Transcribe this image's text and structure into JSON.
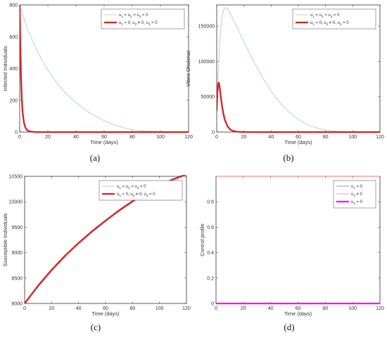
{
  "colors": {
    "uncontrolled": "#b9d3d2",
    "controlled": "#d62020",
    "u1": "#9e9e9e",
    "u2": "#b7b7b7",
    "u3": "#ff00ff",
    "pink_line": "#ff7070"
  },
  "chart_data": [
    {
      "id": "a",
      "caption": "(a)",
      "type": "line",
      "xlabel": "Time (days)",
      "ylabel": "Infected Individuals",
      "xlim": [
        0,
        120
      ],
      "ylim": [
        0,
        800
      ],
      "xticks": [
        0,
        20,
        40,
        60,
        80,
        100,
        120
      ],
      "yticks": [
        0,
        200,
        400,
        600,
        800
      ],
      "ytick_labels": [
        "0",
        "200",
        "400",
        "600",
        "800"
      ],
      "legend_position": "top-right",
      "legend": [
        {
          "base": "u",
          "subs": [
            "1",
            "2",
            "3"
          ],
          "mid": [
            " = ",
            " = ",
            " = "
          ],
          "tail": "0"
        },
        {
          "base": "u",
          "subs": [
            "1",
            "2",
            "3"
          ],
          "mid": [
            " = 0, ",
            " ≠ 0, ",
            " = "
          ],
          "tail": "0"
        }
      ],
      "series": [
        {
          "x": [
            0,
            2,
            5,
            10,
            15,
            20,
            25,
            30,
            35,
            40,
            45,
            50,
            55,
            60,
            65,
            70,
            75,
            80,
            85,
            90,
            100,
            110,
            120
          ],
          "y": [
            800,
            740,
            660,
            555,
            465,
            390,
            325,
            270,
            225,
            186,
            150,
            120,
            95,
            72,
            52,
            36,
            24,
            16,
            10,
            6,
            3,
            1,
            0
          ]
        },
        {
          "x": [
            0,
            0.5,
            1,
            1.5,
            2,
            3,
            4,
            5,
            6,
            8,
            10,
            15,
            20,
            30,
            60,
            90,
            120
          ],
          "y": [
            800,
            520,
            330,
            210,
            130,
            60,
            30,
            15,
            8,
            3,
            1,
            0,
            0,
            0,
            0,
            0,
            0
          ]
        }
      ]
    },
    {
      "id": "b",
      "caption": "(b)",
      "type": "line",
      "xlabel": "Time (days)",
      "ylabel": "Vibrio Cholerae",
      "xlim": [
        0,
        120
      ],
      "ylim": [
        0,
        180000
      ],
      "xticks": [
        0,
        20,
        40,
        60,
        80,
        100,
        120
      ],
      "yticks": [
        0,
        50000,
        100000,
        150000
      ],
      "ytick_labels": [
        "0",
        "50000",
        "100000",
        "150000"
      ],
      "legend_position": "top-right",
      "legend": [
        {
          "base": "u",
          "subs": [
            "1",
            "2",
            "3"
          ],
          "mid": [
            " = ",
            " = ",
            " = "
          ],
          "tail": "0"
        },
        {
          "base": "u",
          "subs": [
            "1",
            "2",
            "3"
          ],
          "mid": [
            " = 0, ",
            " ≠ 0, ",
            " = "
          ],
          "tail": "0"
        }
      ],
      "series": [
        {
          "x": [
            0,
            1,
            2,
            3,
            4,
            5,
            6,
            7,
            8,
            10,
            12,
            15,
            20,
            25,
            30,
            35,
            40,
            45,
            50,
            55,
            60,
            65,
            70,
            75,
            80,
            85,
            90,
            100,
            110,
            120
          ],
          "y": [
            35000,
            80000,
            120000,
            148000,
            164000,
            172000,
            176000,
            176000,
            174000,
            168000,
            160000,
            148000,
            128000,
            108000,
            90000,
            73000,
            58000,
            45000,
            34000,
            25000,
            18000,
            12000,
            8000,
            5000,
            3000,
            1800,
            1000,
            400,
            150,
            50
          ]
        },
        {
          "x": [
            0,
            0.5,
            1,
            1.5,
            2,
            3,
            4,
            5,
            6,
            8,
            10,
            12,
            15,
            20,
            30,
            60,
            90,
            120
          ],
          "y": [
            30000,
            55000,
            68000,
            70000,
            66000,
            50000,
            36000,
            25000,
            17000,
            8000,
            3500,
            1500,
            500,
            100,
            0,
            0,
            0,
            0
          ]
        }
      ]
    },
    {
      "id": "c",
      "caption": "(c)",
      "type": "line",
      "xlabel": "Time (days)",
      "ylabel": "Susceptible Individuals",
      "xlim": [
        0,
        120
      ],
      "ylim": [
        8000,
        10500
      ],
      "xticks": [
        0,
        20,
        40,
        60,
        80,
        100,
        120
      ],
      "yticks": [
        8000,
        8500,
        9000,
        9500,
        10000,
        10500
      ],
      "ytick_labels": [
        "8000",
        "8500",
        "9000",
        "9500",
        "10000",
        "10500"
      ],
      "legend_position": "top-right",
      "legend": [
        {
          "base": "u",
          "subs": [
            "1",
            "2",
            "3"
          ],
          "mid": [
            " = ",
            " = ",
            " = "
          ],
          "tail": "0"
        },
        {
          "base": "u",
          "subs": [
            "1",
            "2",
            "3"
          ],
          "mid": [
            " = 0, ",
            " ≠ 0, ",
            " = "
          ],
          "tail": "0"
        }
      ],
      "series": [
        {
          "x": [
            0,
            10,
            20,
            30,
            40,
            50,
            60,
            70,
            80,
            90,
            100,
            110,
            120
          ],
          "y": [
            8000,
            8320,
            8620,
            8900,
            9150,
            9390,
            9600,
            9800,
            9980,
            10150,
            10300,
            10420,
            10520
          ]
        },
        {
          "x": [
            0,
            10,
            20,
            30,
            40,
            50,
            60,
            70,
            80,
            90,
            100,
            110,
            120
          ],
          "y": [
            8000,
            8350,
            8660,
            8940,
            9190,
            9420,
            9630,
            9830,
            10010,
            10180,
            10330,
            10440,
            10540
          ]
        }
      ]
    },
    {
      "id": "d",
      "caption": "(d)",
      "type": "line",
      "xlabel": "Time (days)",
      "ylabel": "Control profile",
      "xlim": [
        0,
        120
      ],
      "ylim": [
        0,
        1
      ],
      "xticks": [
        0,
        20,
        40,
        60,
        80,
        100,
        120
      ],
      "yticks": [
        0,
        0.2,
        0.4,
        0.6,
        0.8
      ],
      "ytick_labels": [
        "0",
        "0.2",
        "0.4",
        "0.6",
        "0.8"
      ],
      "legend_position": "top-right",
      "legend": [
        {
          "base": "u",
          "subs": [
            "1"
          ],
          "mid": [
            " = "
          ],
          "tail": "0"
        },
        {
          "base": "u",
          "subs": [
            "2"
          ],
          "mid": [
            " ≠ "
          ],
          "tail": "0"
        },
        {
          "base": "u",
          "subs": [
            "3"
          ],
          "mid": [
            " = "
          ],
          "tail": "0"
        }
      ],
      "series": [
        {
          "x": [
            0,
            120
          ],
          "y": [
            0,
            0
          ]
        },
        {
          "x": [
            0,
            120
          ],
          "y": [
            1,
            1
          ]
        },
        {
          "x": [
            0,
            120
          ],
          "y": [
            0,
            0
          ]
        }
      ]
    }
  ]
}
